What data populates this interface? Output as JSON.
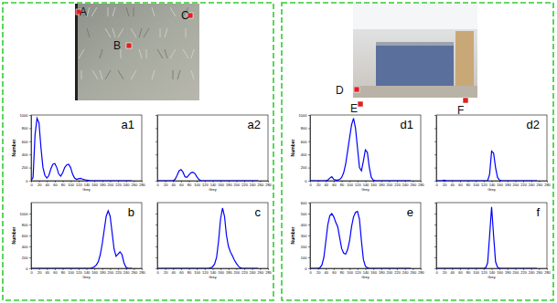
{
  "chart_data": [
    {
      "type": "line",
      "title": "a1",
      "color": "#0000ff",
      "x_label": "Grey",
      "y_label": "Number",
      "x": [
        0,
        5,
        10,
        15,
        20,
        25,
        30,
        35,
        40,
        45,
        50,
        55,
        60,
        65,
        70,
        75,
        80,
        85,
        90,
        95,
        100,
        105,
        110,
        115,
        120,
        125,
        130,
        135,
        140,
        145,
        150,
        255
      ],
      "values": [
        0,
        50,
        700,
        950,
        880,
        500,
        200,
        80,
        40,
        80,
        180,
        250,
        260,
        200,
        100,
        70,
        120,
        200,
        240,
        250,
        200,
        100,
        40,
        20,
        30,
        35,
        25,
        15,
        10,
        5,
        0,
        0
      ],
      "xlim": [
        0,
        280
      ],
      "xticks": [
        0,
        20,
        40,
        60,
        80,
        100,
        120,
        140,
        160,
        180,
        200,
        220,
        240,
        260,
        280
      ],
      "ylim": [
        0,
        1000
      ],
      "yticks": [
        0,
        200,
        400,
        600,
        800,
        1000
      ]
    },
    {
      "type": "line",
      "title": "a2",
      "color": "#0000ff",
      "x_label": "Grey",
      "tick_labels": "x",
      "x": [
        0,
        40,
        45,
        50,
        55,
        60,
        65,
        70,
        75,
        80,
        85,
        90,
        95,
        100,
        105,
        110,
        255
      ],
      "values": [
        0,
        0,
        20,
        80,
        150,
        170,
        130,
        60,
        50,
        90,
        120,
        130,
        110,
        60,
        20,
        0,
        0
      ],
      "xlim": [
        0,
        280
      ],
      "xticks": [
        0,
        20,
        40,
        60,
        80,
        100,
        120,
        140,
        160,
        180,
        200,
        220,
        240,
        260,
        280
      ],
      "ylim": [
        0,
        1000
      ],
      "yticks": [
        0,
        200,
        400,
        600,
        800,
        1000
      ]
    },
    {
      "type": "line",
      "title": "b",
      "color": "#0000ff",
      "x_label": "Grey",
      "y_label": "Number",
      "x": [
        0,
        150,
        155,
        160,
        165,
        170,
        175,
        180,
        185,
        190,
        195,
        200,
        205,
        210,
        215,
        220,
        225,
        230,
        235,
        240,
        245,
        255
      ],
      "values": [
        0,
        0,
        10,
        30,
        60,
        120,
        250,
        450,
        700,
        950,
        1050,
        950,
        650,
        350,
        220,
        260,
        300,
        250,
        100,
        20,
        0,
        0
      ],
      "xlim": [
        0,
        280
      ],
      "xticks": [
        0,
        20,
        40,
        60,
        80,
        100,
        120,
        140,
        160,
        180,
        200,
        220,
        240,
        260,
        280
      ],
      "ylim": [
        0,
        1200
      ],
      "yticks": [
        0,
        200,
        400,
        600,
        800,
        1000
      ]
    },
    {
      "type": "line",
      "title": "c",
      "color": "#0000ff",
      "x_label": "Grey",
      "tick_labels": "x",
      "x": [
        0,
        130,
        135,
        140,
        145,
        150,
        155,
        160,
        165,
        170,
        175,
        180,
        185,
        190,
        195,
        200,
        205,
        210,
        215,
        255
      ],
      "values": [
        0,
        0,
        10,
        30,
        80,
        200,
        500,
        900,
        1100,
        950,
        600,
        400,
        300,
        230,
        150,
        90,
        40,
        10,
        0,
        0
      ],
      "xlim": [
        0,
        280
      ],
      "xticks": [
        0,
        20,
        40,
        60,
        80,
        100,
        120,
        140,
        160,
        180,
        200,
        220,
        240,
        260,
        280
      ],
      "ylim": [
        0,
        1200
      ],
      "yticks": [
        0,
        200,
        400,
        600,
        800,
        1000
      ]
    },
    {
      "type": "line",
      "title": "d1",
      "color": "#0000ff",
      "x_label": "Grey",
      "y_label": "Number",
      "x": [
        0,
        40,
        45,
        50,
        55,
        60,
        65,
        70,
        75,
        80,
        85,
        90,
        95,
        100,
        105,
        110,
        115,
        120,
        125,
        130,
        135,
        140,
        145,
        150,
        155,
        160,
        165,
        255
      ],
      "values": [
        0,
        0,
        10,
        40,
        60,
        20,
        10,
        10,
        20,
        50,
        120,
        250,
        450,
        650,
        850,
        950,
        800,
        500,
        200,
        150,
        300,
        470,
        430,
        200,
        50,
        10,
        0,
        0
      ],
      "xlim": [
        0,
        280
      ],
      "xticks": [
        0,
        20,
        40,
        60,
        80,
        100,
        120,
        140,
        160,
        180,
        200,
        220,
        240,
        260,
        280
      ],
      "ylim": [
        0,
        1000
      ],
      "yticks": [
        0,
        200,
        400,
        600,
        800,
        1000
      ]
    },
    {
      "type": "line",
      "title": "d2",
      "color": "#0000ff",
      "x_label": "Grey",
      "tick_labels": "x",
      "x": [
        0,
        15,
        20,
        25,
        130,
        135,
        140,
        145,
        150,
        155,
        160,
        165,
        255
      ],
      "values": [
        0,
        0,
        10,
        0,
        0,
        100,
        450,
        420,
        200,
        50,
        10,
        0,
        0
      ],
      "xlim": [
        0,
        280
      ],
      "xticks": [
        0,
        20,
        40,
        60,
        80,
        100,
        120,
        140,
        160,
        180,
        200,
        220,
        240,
        260,
        280
      ],
      "ylim": [
        0,
        1000
      ],
      "yticks": [
        0,
        200,
        400,
        600,
        800,
        1000
      ]
    },
    {
      "type": "line",
      "title": "e",
      "color": "#0000ff",
      "x_label": "Grey",
      "y_label": "Number",
      "x": [
        0,
        20,
        25,
        30,
        35,
        40,
        45,
        50,
        55,
        60,
        65,
        70,
        75,
        80,
        85,
        90,
        95,
        100,
        105,
        110,
        115,
        120,
        125,
        130,
        135,
        140,
        145,
        150,
        255
      ],
      "values": [
        0,
        0,
        5,
        30,
        100,
        250,
        400,
        480,
        500,
        470,
        420,
        380,
        280,
        180,
        140,
        130,
        170,
        250,
        380,
        470,
        510,
        520,
        450,
        250,
        80,
        20,
        5,
        0,
        0
      ],
      "xlim": [
        0,
        280
      ],
      "xticks": [
        0,
        20,
        40,
        60,
        80,
        100,
        120,
        140,
        160,
        180,
        200,
        220,
        240,
        260,
        280
      ],
      "ylim": [
        0,
        600
      ],
      "yticks": [
        0,
        100,
        200,
        300,
        400,
        500,
        600
      ]
    },
    {
      "type": "line",
      "title": "f",
      "color": "#0000ff",
      "x_label": "Grey",
      "tick_labels": "x",
      "x": [
        0,
        120,
        125,
        130,
        135,
        140,
        145,
        150,
        155,
        160,
        255
      ],
      "values": [
        0,
        0,
        5,
        50,
        300,
        560,
        300,
        60,
        10,
        0,
        0
      ],
      "xlim": [
        0,
        280
      ],
      "xticks": [
        0,
        20,
        40,
        60,
        80,
        100,
        120,
        140,
        160,
        180,
        200,
        220,
        240,
        260,
        280
      ],
      "ylim": [
        0,
        600
      ],
      "yticks": [
        0,
        100,
        200,
        300,
        400,
        500,
        600
      ]
    }
  ],
  "images": [
    {
      "markers": [
        "A",
        "B",
        "C"
      ]
    },
    {
      "markers": [
        "D",
        "E",
        "F"
      ]
    }
  ]
}
